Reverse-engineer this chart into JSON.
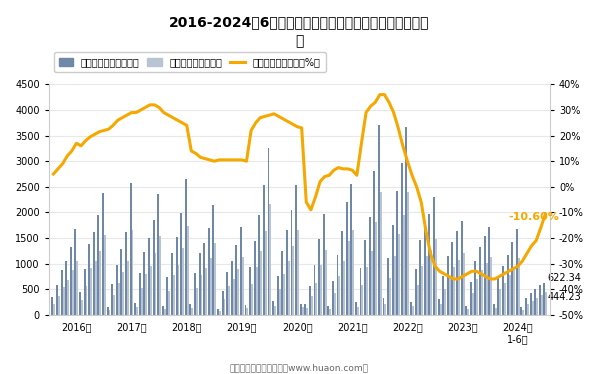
{
  "title": "2016-2024年6月广西壮族自治区房地产投资额及住宅投资\n额",
  "footer": "制图：华经产业研究院（www.huaon.com）",
  "bar_color": "#7088a8",
  "residential_bar_color": "#b8c4d4",
  "line_color": "#f5a800",
  "ylim_left": [
    0,
    4500
  ],
  "ylim_right": [
    -50,
    40
  ],
  "yticks_left": [
    0,
    500,
    1000,
    1500,
    2000,
    2500,
    3000,
    3500,
    4000,
    4500
  ],
  "yticks_right": [
    -50,
    -40,
    -30,
    -20,
    -10,
    0,
    10,
    20,
    30,
    40
  ],
  "annotation_value": "-10.60%",
  "annotation_622": "622.34",
  "annotation_444": "444.23",
  "real_estate_values": [
    350,
    580,
    870,
    1050,
    1330,
    1670,
    440,
    900,
    1380,
    1620,
    1950,
    2380,
    155,
    610,
    970,
    1280,
    1620,
    2580,
    240,
    820,
    1220,
    1500,
    1850,
    2360,
    170,
    730,
    1200,
    1520,
    1980,
    2650,
    210,
    810,
    1210,
    1400,
    1700,
    2150,
    105,
    460,
    840,
    1060,
    1360,
    1720,
    195,
    930,
    1440,
    1940,
    2540,
    3250,
    270,
    760,
    1250,
    1650,
    2050,
    2540,
    220,
    220,
    560,
    980,
    1490,
    1970,
    175,
    660,
    1160,
    1640,
    2200,
    2560,
    250,
    910,
    1460,
    1910,
    2800,
    3700,
    320,
    1100,
    1760,
    2420,
    2960,
    3660,
    250,
    900,
    1460,
    1780,
    1960,
    2300,
    310,
    750,
    1150,
    1420,
    1640,
    1840,
    170,
    650,
    1050,
    1330,
    1540,
    1720,
    210,
    750,
    950,
    1170,
    1430,
    1680,
    150,
    320,
    420,
    510,
    590,
    622
  ],
  "residential_values": [
    210,
    360,
    550,
    680,
    880,
    1060,
    280,
    570,
    910,
    1050,
    1250,
    1550,
    95,
    380,
    620,
    840,
    1060,
    1660,
    150,
    520,
    790,
    960,
    1200,
    1540,
    115,
    470,
    780,
    970,
    1300,
    1740,
    135,
    520,
    775,
    920,
    1110,
    1410,
    70,
    300,
    555,
    695,
    890,
    1120,
    125,
    600,
    940,
    1250,
    1640,
    2160,
    170,
    495,
    805,
    1060,
    1340,
    1660,
    145,
    140,
    360,
    630,
    970,
    1270,
    115,
    430,
    750,
    1060,
    1440,
    1660,
    160,
    590,
    940,
    1240,
    1820,
    2400,
    205,
    715,
    1140,
    1580,
    1940,
    2400,
    165,
    590,
    945,
    1150,
    1270,
    1490,
    210,
    495,
    750,
    930,
    1080,
    1205,
    115,
    430,
    695,
    875,
    1010,
    1125,
    140,
    495,
    620,
    770,
    940,
    1100,
    95,
    210,
    270,
    335,
    385,
    444
  ],
  "growth_rate": [
    5.0,
    7.0,
    9.0,
    12.0,
    14.0,
    17.0,
    16.0,
    18.0,
    19.5,
    20.5,
    21.5,
    22.0,
    22.5,
    24.0,
    26.0,
    27.0,
    28.0,
    29.0,
    29.0,
    30.0,
    31.0,
    32.0,
    32.0,
    31.0,
    29.0,
    28.0,
    27.0,
    26.0,
    25.0,
    24.0,
    14.0,
    13.0,
    11.5,
    11.0,
    10.5,
    10.0,
    10.5,
    10.5,
    10.5,
    10.5,
    10.5,
    10.5,
    10.0,
    22.0,
    25.0,
    27.0,
    27.5,
    28.0,
    28.5,
    27.5,
    26.5,
    25.5,
    24.5,
    23.5,
    23.0,
    -6.0,
    -9.0,
    -4.0,
    2.0,
    4.0,
    4.5,
    6.5,
    7.5,
    7.0,
    7.0,
    6.5,
    4.5,
    17.0,
    29.0,
    31.5,
    33.0,
    36.0,
    36.0,
    33.0,
    29.0,
    23.0,
    16.0,
    10.0,
    4.5,
    0.0,
    -6.0,
    -17.0,
    -26.0,
    -31.0,
    -33.0,
    -34.0,
    -35.0,
    -36.0,
    -36.0,
    -35.0,
    -34.0,
    -33.0,
    -33.0,
    -34.0,
    -35.0,
    -36.0,
    -36.0,
    -35.0,
    -34.0,
    -33.0,
    -32.0,
    -31.0,
    -29.0,
    -26.0,
    -23.0,
    -21.0,
    -16.0,
    -10.6
  ],
  "xtick_positions": [
    5,
    17,
    29,
    41,
    53,
    65,
    77,
    89,
    101
  ],
  "xtick_labels": [
    "2016年",
    "2017年",
    "2018年",
    "2019年",
    "2020年",
    "2021年",
    "2022年",
    "2023年",
    "2024年\n1-6月"
  ]
}
